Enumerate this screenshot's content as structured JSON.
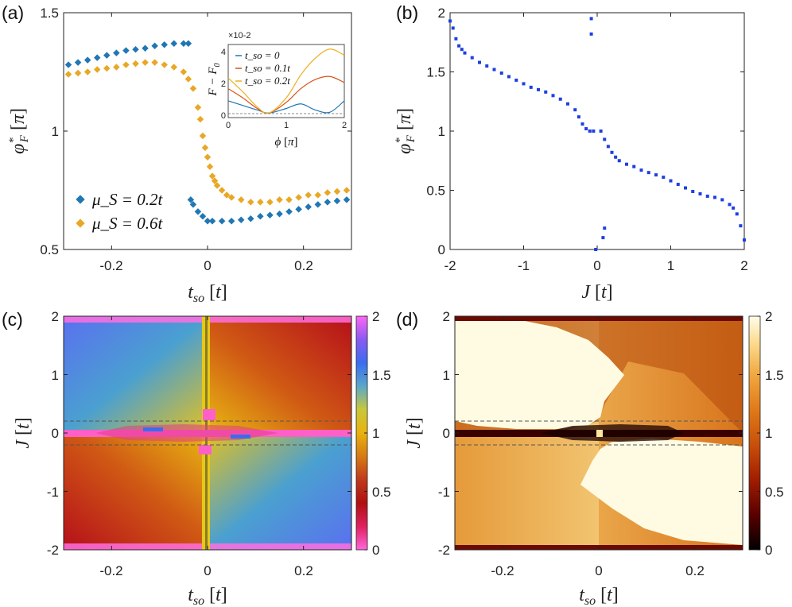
{
  "panel_labels": [
    "(a)",
    "(b)",
    "(c)",
    "(d)"
  ],
  "chart_data": [
    {
      "panel": "(a)",
      "type": "scatter",
      "xlabel": "t_so [t]",
      "ylabel": "φ*_F [π]",
      "xlim": [
        -0.3,
        0.3
      ],
      "ylim": [
        0.5,
        1.5
      ],
      "xticks": [
        "-0.2",
        "0",
        "0.2"
      ],
      "yticks": [
        "0.5",
        "1",
        "1.5"
      ],
      "legend_position": "bottom-left",
      "series": [
        {
          "name": "μ_S = 0.2t",
          "color": "#1f77b4",
          "x": [
            -0.29,
            -0.27,
            -0.25,
            -0.23,
            -0.21,
            -0.19,
            -0.17,
            -0.15,
            -0.13,
            -0.11,
            -0.09,
            -0.07,
            -0.05,
            -0.04,
            -0.035,
            -0.03,
            -0.02,
            -0.01,
            0.0,
            0.01,
            0.03,
            0.05,
            0.07,
            0.09,
            0.11,
            0.13,
            0.15,
            0.17,
            0.19,
            0.21,
            0.23,
            0.25,
            0.27,
            0.29
          ],
          "y": [
            1.28,
            1.29,
            1.3,
            1.31,
            1.32,
            1.33,
            1.34,
            1.345,
            1.35,
            1.36,
            1.365,
            1.37,
            1.37,
            1.37,
            0.71,
            0.69,
            0.66,
            0.64,
            0.62,
            0.62,
            0.62,
            0.62,
            0.625,
            0.63,
            0.64,
            0.645,
            0.65,
            0.66,
            0.67,
            0.68,
            0.69,
            0.7,
            0.705,
            0.71
          ]
        },
        {
          "name": "μ_S = 0.6t",
          "color": "#e8a825",
          "x": [
            -0.29,
            -0.27,
            -0.25,
            -0.23,
            -0.21,
            -0.19,
            -0.17,
            -0.15,
            -0.13,
            -0.11,
            -0.09,
            -0.07,
            -0.05,
            -0.04,
            -0.03,
            -0.02,
            -0.015,
            -0.01,
            -0.005,
            0.0,
            0.005,
            0.01,
            0.015,
            0.02,
            0.03,
            0.04,
            0.05,
            0.07,
            0.09,
            0.11,
            0.13,
            0.15,
            0.17,
            0.19,
            0.21,
            0.23,
            0.25,
            0.27,
            0.29
          ],
          "y": [
            1.24,
            1.245,
            1.25,
            1.26,
            1.265,
            1.27,
            1.28,
            1.285,
            1.29,
            1.29,
            1.28,
            1.27,
            1.25,
            1.22,
            1.18,
            1.1,
            1.05,
            0.98,
            0.93,
            0.89,
            0.85,
            0.81,
            0.79,
            0.77,
            0.75,
            0.73,
            0.72,
            0.71,
            0.7,
            0.7,
            0.7,
            0.71,
            0.71,
            0.72,
            0.73,
            0.73,
            0.74,
            0.745,
            0.75
          ]
        }
      ]
    },
    {
      "panel": "(a) inset",
      "type": "line",
      "xlabel": "ϕ [π]",
      "ylabel": "F − F0",
      "scale_note": "×10-2",
      "xlim": [
        0,
        2
      ],
      "ylim": [
        -0.3,
        4.5
      ],
      "xticks": [
        "0",
        "1",
        "2"
      ],
      "yticks": [
        "0",
        "2",
        "4"
      ],
      "series": [
        {
          "name": "t_so = 0",
          "color": "#1f77b4",
          "x": [
            0,
            0.25,
            0.5,
            0.7,
            1.0,
            1.25,
            1.5,
            1.75,
            2.0
          ],
          "y": [
            0.8,
            0.5,
            0.2,
            0.0,
            0.3,
            0.6,
            0.2,
            0.05,
            0.8
          ]
        },
        {
          "name": "t_so = 0.1t",
          "color": "#d95319",
          "x": [
            0,
            0.25,
            0.5,
            0.7,
            1.0,
            1.25,
            1.5,
            1.75,
            2.0
          ],
          "y": [
            1.6,
            1.0,
            0.3,
            0.0,
            0.7,
            1.6,
            2.2,
            2.4,
            2.0
          ]
        },
        {
          "name": "t_so = 0.2t",
          "color": "#edb120",
          "x": [
            0,
            0.25,
            0.5,
            0.7,
            1.0,
            1.25,
            1.5,
            1.75,
            2.0
          ],
          "y": [
            2.3,
            1.4,
            0.4,
            0.0,
            1.0,
            2.5,
            3.6,
            4.2,
            3.8
          ]
        }
      ]
    },
    {
      "panel": "(b)",
      "type": "scatter",
      "xlabel": "J [t]",
      "ylabel": "φ*_F [π]",
      "xlim": [
        -2,
        2
      ],
      "ylim": [
        0,
        2
      ],
      "xticks": [
        "-2",
        "-1",
        "0",
        "1",
        "2"
      ],
      "yticks": [
        "0",
        "0.5",
        "1",
        "1.5",
        "2"
      ],
      "series": [
        {
          "name": "phi_F",
          "color": "#1f3fe0",
          "x": [
            -2.0,
            -1.96,
            -1.92,
            -1.88,
            -1.84,
            -1.8,
            -1.7,
            -1.6,
            -1.5,
            -1.4,
            -1.3,
            -1.2,
            -1.1,
            -1.0,
            -0.9,
            -0.8,
            -0.7,
            -0.6,
            -0.5,
            -0.4,
            -0.3,
            -0.25,
            -0.2,
            -0.15,
            -0.1,
            -0.05,
            0.05,
            0.1,
            0.15,
            0.2,
            0.25,
            0.3,
            0.4,
            0.5,
            0.6,
            0.7,
            0.8,
            0.9,
            1.0,
            1.1,
            1.2,
            1.3,
            1.4,
            1.5,
            1.6,
            1.7,
            1.8,
            1.85,
            1.9,
            1.95,
            2.0,
            -0.08,
            -0.08,
            -0.02,
            0.08,
            0.1
          ],
          "y": [
            1.93,
            1.87,
            1.78,
            1.72,
            1.69,
            1.66,
            1.62,
            1.58,
            1.55,
            1.52,
            1.49,
            1.46,
            1.43,
            1.4,
            1.37,
            1.35,
            1.33,
            1.3,
            1.27,
            1.23,
            1.18,
            1.12,
            1.06,
            1.02,
            1.0,
            1.0,
            1.0,
            0.93,
            0.87,
            0.82,
            0.78,
            0.75,
            0.72,
            0.7,
            0.67,
            0.65,
            0.63,
            0.61,
            0.58,
            0.55,
            0.52,
            0.49,
            0.47,
            0.45,
            0.44,
            0.42,
            0.38,
            0.35,
            0.3,
            0.2,
            0.08,
            1.95,
            1.82,
            0.0,
            0.1,
            0.18
          ]
        }
      ]
    },
    {
      "panel": "(c)",
      "type": "heatmap",
      "xlabel": "t_so [t]",
      "ylabel": "J [t]",
      "xlim": [
        -0.3,
        0.3
      ],
      "ylim": [
        -2,
        2
      ],
      "xticks": [
        "-0.2",
        "0",
        "0.2"
      ],
      "yticks": [
        "-2",
        "-1",
        "0",
        "1",
        "2"
      ],
      "colorbar_ticks": [
        "0",
        "0.5",
        "1",
        "1.5",
        "2"
      ],
      "colorbar_range": [
        0,
        2
      ],
      "colormap": [
        "#ff66d9",
        "#e02060",
        "#b01010",
        "#c0391b",
        "#d77a12",
        "#e8b20e",
        "#e6c818",
        "#c9c83a",
        "#5aa8c8",
        "#3a6cf0",
        "#6f55f2",
        "#d07af0",
        "#ff66f5"
      ],
      "dashed_lines_J": [
        0.2,
        -0.2
      ]
    },
    {
      "panel": "(d)",
      "type": "heatmap",
      "xlabel": "t_so [t]",
      "ylabel": "J [t]",
      "xlim": [
        -0.3,
        0.3
      ],
      "ylim": [
        -2,
        2
      ],
      "xticks": [
        "-0.2",
        "0",
        "0.2"
      ],
      "yticks": [
        "-2",
        "-1",
        "0",
        "1",
        "2"
      ],
      "colorbar_ticks": [
        "0",
        "0.5",
        "1",
        "1.5",
        "2"
      ],
      "colorbar_range": [
        0,
        2
      ],
      "colormap": [
        "#000000",
        "#5a0000",
        "#a11d00",
        "#c8500a",
        "#e07a18",
        "#ee9b30",
        "#f6c060",
        "#fce09a",
        "#fffdea"
      ],
      "dashed_lines_J": [
        0.2,
        -0.2
      ]
    }
  ]
}
